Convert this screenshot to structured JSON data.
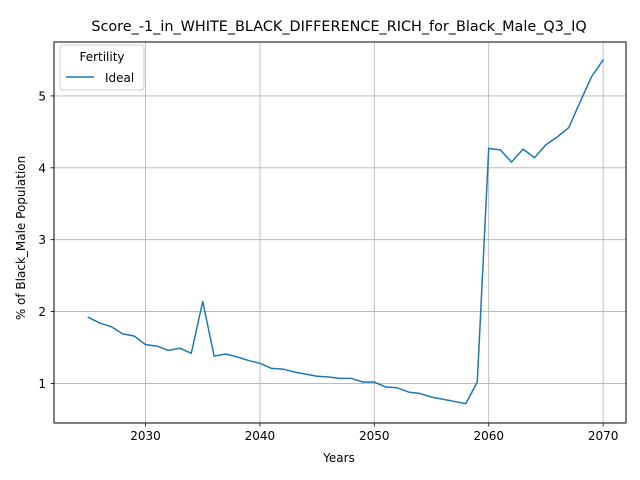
{
  "chart_data": {
    "type": "line",
    "title": "Score_-1_in_WHITE_BLACK_DIFFERENCE_RICH_for_Black_Male_Q3_IQ",
    "xlabel": "Years",
    "ylabel": "% of Black_Male Population",
    "xlim": [
      2022,
      2072
    ],
    "ylim": [
      0.45,
      5.75
    ],
    "xticks": [
      2030,
      2040,
      2050,
      2060,
      2070
    ],
    "yticks": [
      1,
      2,
      3,
      4,
      5
    ],
    "grid": true,
    "legend": {
      "title": "Fertility",
      "placement": "top-left"
    },
    "series": [
      {
        "name": "Ideal",
        "color": "#1f77b4",
        "x": [
          2025,
          2026,
          2027,
          2028,
          2029,
          2030,
          2031,
          2032,
          2033,
          2034,
          2035,
          2036,
          2037,
          2038,
          2039,
          2040,
          2041,
          2042,
          2043,
          2044,
          2045,
          2046,
          2047,
          2048,
          2049,
          2050,
          2051,
          2052,
          2053,
          2054,
          2055,
          2056,
          2057,
          2058,
          2059,
          2060,
          2061,
          2062,
          2063,
          2064,
          2065,
          2066,
          2067,
          2068,
          2069,
          2070
        ],
        "y": [
          1.92,
          1.84,
          1.79,
          1.69,
          1.66,
          1.54,
          1.52,
          1.46,
          1.49,
          1.42,
          2.14,
          1.38,
          1.41,
          1.37,
          1.32,
          1.28,
          1.21,
          1.2,
          1.16,
          1.13,
          1.1,
          1.09,
          1.07,
          1.07,
          1.02,
          1.02,
          0.95,
          0.94,
          0.88,
          0.86,
          0.81,
          0.78,
          0.75,
          0.72,
          1.02,
          4.27,
          4.25,
          4.08,
          4.26,
          4.14,
          4.32,
          4.43,
          4.56,
          4.92,
          5.27,
          5.5
        ]
      }
    ]
  }
}
